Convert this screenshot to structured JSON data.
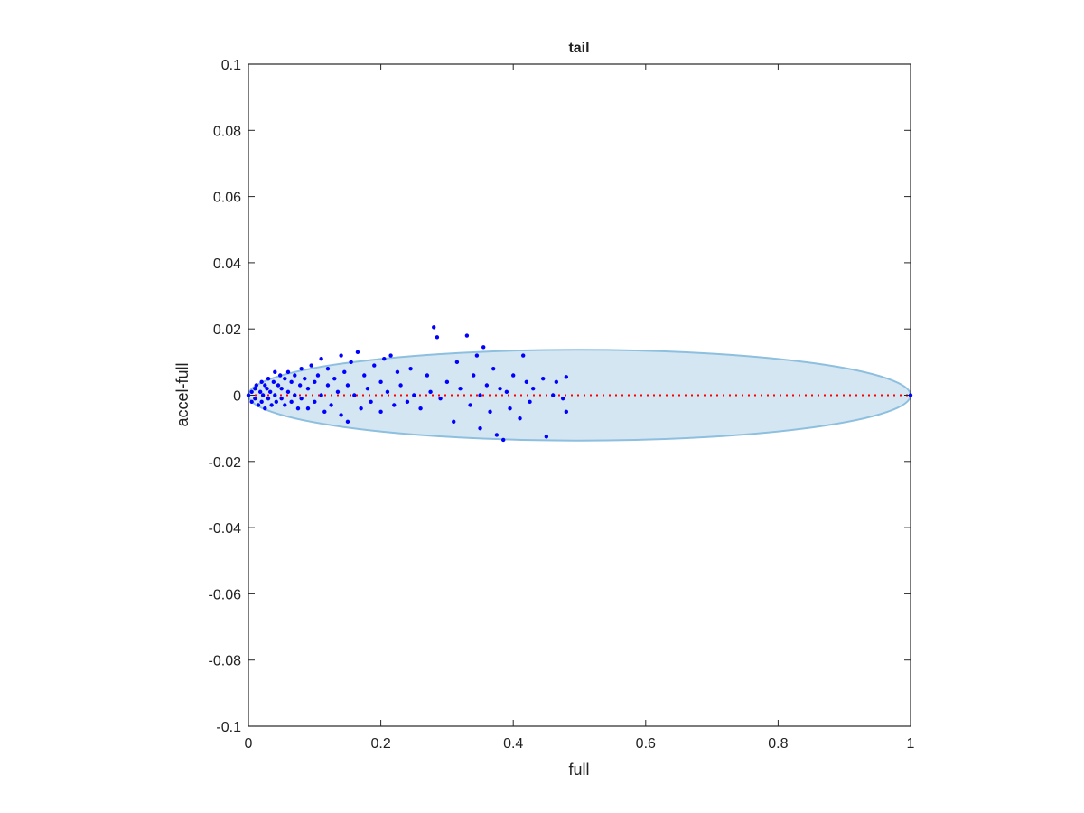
{
  "chart_data": {
    "type": "scatter",
    "title": "tail",
    "xlabel": "full",
    "ylabel": "accel-full",
    "color": "#0000ff",
    "xlim": [
      0,
      1
    ],
    "ylim": [
      -0.1,
      0.1
    ],
    "xticks": [
      0,
      0.2,
      0.4,
      0.6,
      0.8,
      1
    ],
    "yticks": [
      -0.1,
      -0.08,
      -0.06,
      -0.04,
      -0.02,
      0,
      0.02,
      0.04,
      0.06,
      0.08,
      0.1
    ],
    "reference_line": {
      "y": 0,
      "color": "#ff0000"
    },
    "ellipse": {
      "cx": 0.5,
      "cy": 0,
      "rx": 0.5,
      "ry": 0.0137,
      "fill": "#d5e6f3",
      "stroke": "#8dbfdf"
    },
    "x": [
      0,
      0.005,
      0.005,
      0.01,
      0.01,
      0.012,
      0.015,
      0.018,
      0.02,
      0.02,
      0.022,
      0.025,
      0.025,
      0.028,
      0.03,
      0.03,
      0.033,
      0.035,
      0.038,
      0.04,
      0.04,
      0.042,
      0.045,
      0.048,
      0.05,
      0.05,
      0.055,
      0.055,
      0.06,
      0.06,
      0.065,
      0.065,
      0.07,
      0.07,
      0.075,
      0.078,
      0.08,
      0.08,
      0.085,
      0.09,
      0.09,
      0.095,
      0.1,
      0.1,
      0.105,
      0.11,
      0.11,
      0.115,
      0.12,
      0.12,
      0.125,
      0.13,
      0.135,
      0.14,
      0.14,
      0.145,
      0.15,
      0.15,
      0.155,
      0.16,
      0.165,
      0.17,
      0.175,
      0.18,
      0.185,
      0.19,
      0.2,
      0.2,
      0.205,
      0.21,
      0.215,
      0.22,
      0.225,
      0.23,
      0.24,
      0.245,
      0.25,
      0.26,
      0.27,
      0.275,
      0.28,
      0.285,
      0.29,
      0.3,
      0.31,
      0.315,
      0.32,
      0.33,
      0.335,
      0.34,
      0.345,
      0.35,
      0.35,
      0.355,
      0.36,
      0.365,
      0.37,
      0.375,
      0.38,
      0.385,
      0.39,
      0.395,
      0.4,
      0.41,
      0.415,
      0.42,
      0.425,
      0.43,
      0.445,
      0.45,
      0.46,
      0.465,
      0.475,
      0.48,
      0.48,
      1
    ],
    "values": [
      0,
      0.001,
      -0.002,
      0.002,
      -0.001,
      0.003,
      -0.003,
      0.001,
      0.004,
      -0.002,
      0,
      0.003,
      -0.004,
      0.002,
      -0.001,
      0.005,
      0.001,
      -0.003,
      0.004,
      0,
      0.007,
      -0.002,
      0.003,
      0.006,
      -0.001,
      0.002,
      0.005,
      -0.003,
      0.001,
      0.007,
      -0.002,
      0.004,
      0,
      0.006,
      -0.004,
      0.003,
      0.008,
      -0.001,
      0.005,
      0.002,
      -0.004,
      0.009,
      0.004,
      -0.002,
      0.006,
      0,
      0.011,
      -0.005,
      0.003,
      0.008,
      -0.003,
      0.005,
      0.001,
      0.012,
      -0.006,
      0.007,
      0.003,
      -0.008,
      0.01,
      0,
      0.013,
      -0.004,
      0.006,
      0.002,
      -0.002,
      0.009,
      0.004,
      -0.005,
      0.011,
      0.001,
      0.012,
      -0.003,
      0.007,
      0.003,
      -0.002,
      0.008,
      0,
      -0.004,
      0.006,
      0.001,
      0.0205,
      0.0175,
      -0.001,
      0.004,
      -0.008,
      0.01,
      0.002,
      0.018,
      -0.003,
      0.006,
      0.012,
      0,
      -0.01,
      0.0145,
      0.003,
      -0.005,
      0.008,
      -0.012,
      0.002,
      -0.0135,
      0.001,
      -0.004,
      0.006,
      -0.007,
      0.012,
      0.004,
      -0.002,
      0.002,
      0.005,
      -0.0125,
      0,
      0.004,
      -0.001,
      0.0055,
      -0.005,
      0
    ]
  }
}
